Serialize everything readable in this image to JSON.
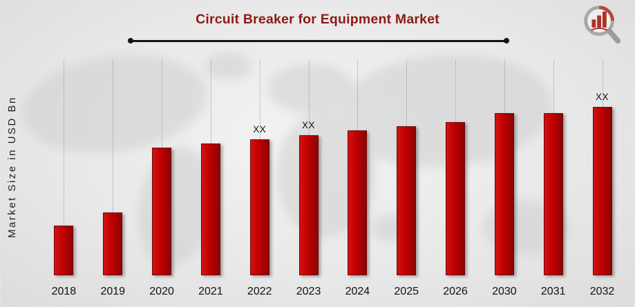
{
  "page": {
    "title": "Circuit Breaker for Equipment Market"
  },
  "chart_data": {
    "type": "bar",
    "title": "Circuit Breaker for Equipment Market",
    "xlabel": "",
    "ylabel": "Market Size in USD Bn",
    "categories": [
      "2018",
      "2019",
      "2020",
      "2021",
      "2022",
      "2023",
      "2024",
      "2025",
      "2026",
      "2030",
      "2031",
      "2032"
    ],
    "values": [
      23,
      29,
      59,
      61,
      63,
      65,
      67,
      69,
      71,
      75,
      75,
      78
    ],
    "bar_labels": [
      "",
      "",
      "",
      "",
      "XX",
      "XX",
      "",
      "",
      "",
      "",
      "",
      "XX"
    ],
    "ylim": [
      0,
      100
    ],
    "grid": "vertical-per-category",
    "legend": "none",
    "bar_gradient": [
      "#d31212",
      "#c00000",
      "#8c0404"
    ],
    "bar_edge_color": "#6e0404",
    "title_color": "#8e1b13",
    "icons": {
      "brand_logo": "magnifier-bar-chart-logo-icon"
    }
  }
}
